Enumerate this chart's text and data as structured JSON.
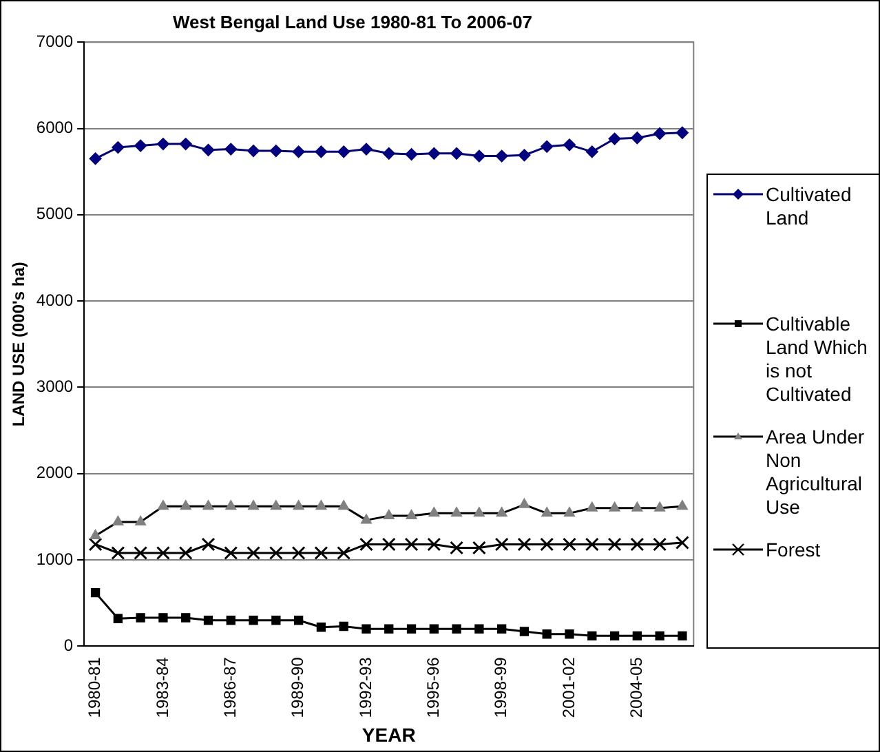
{
  "chart_data": {
    "type": "line",
    "title": "West Bengal Land Use 1980-81 To 2006-07",
    "xlabel": "YEAR",
    "ylabel": "LAND USE (000's ha)",
    "categories": [
      "1980-81",
      null,
      null,
      "1983-84",
      null,
      null,
      "1986-87",
      null,
      null,
      "1989-90",
      null,
      null,
      "1992-93",
      null,
      null,
      "1995-96",
      null,
      null,
      "1998-99",
      null,
      null,
      "2001-02",
      null,
      null,
      "2004-05",
      null,
      null
    ],
    "series": [
      {
        "name": "Cultivated Land",
        "color": "#000080",
        "marker": "diamond",
        "values": [
          5650,
          5780,
          5800,
          5820,
          5820,
          5750,
          5760,
          5740,
          5740,
          5730,
          5730,
          5730,
          5760,
          5710,
          5700,
          5710,
          5710,
          5680,
          5680,
          5690,
          5790,
          5810,
          5730,
          5880,
          5890,
          5940,
          5950
        ]
      },
      {
        "name": "Cultivable Land Which is not Cultivated",
        "color": "#000000",
        "marker": "square",
        "values": [
          620,
          320,
          330,
          330,
          330,
          300,
          300,
          300,
          300,
          300,
          220,
          230,
          200,
          200,
          200,
          200,
          200,
          200,
          200,
          170,
          140,
          140,
          120,
          120,
          120,
          120,
          120
        ]
      },
      {
        "name": "Area Under Non Agricultural Use",
        "color": "#808080",
        "marker": "triangle",
        "values": [
          1280,
          1440,
          1440,
          1620,
          1620,
          1620,
          1620,
          1620,
          1620,
          1620,
          1620,
          1620,
          1460,
          1510,
          1510,
          1540,
          1540,
          1540,
          1540,
          1640,
          1540,
          1540,
          1600,
          1600,
          1600,
          1600,
          1620
        ]
      },
      {
        "name": "Forest",
        "color": "#000000",
        "marker": "cross",
        "values": [
          1180,
          1080,
          1080,
          1080,
          1080,
          1180,
          1080,
          1080,
          1080,
          1080,
          1080,
          1080,
          1180,
          1180,
          1180,
          1180,
          1140,
          1140,
          1180,
          1180,
          1180,
          1180,
          1180,
          1180,
          1180,
          1180,
          1200
        ]
      }
    ],
    "ylim": [
      0,
      7000
    ],
    "yticks": [
      0,
      1000,
      2000,
      3000,
      4000,
      5000,
      6000,
      7000
    ],
    "grid": "y",
    "legend": "right",
    "line_style": "solid"
  }
}
